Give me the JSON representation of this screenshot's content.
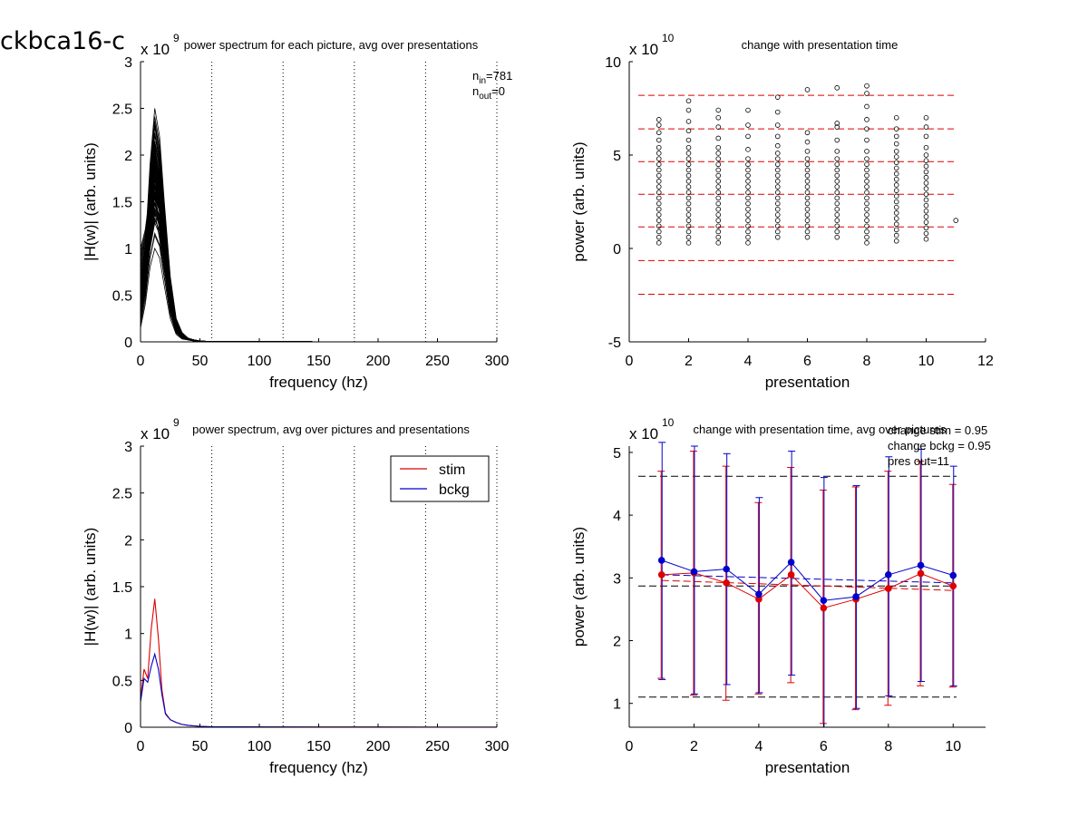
{
  "page_title": "ckbca16-c",
  "colors": {
    "stim": "#dd0000",
    "bckg": "#0000cc",
    "red_dashed": "#dd0000",
    "black_dashed": "#000000",
    "axis": "#000000"
  },
  "chart_data": [
    {
      "id": "p1",
      "type": "line",
      "title": "power spectrum for each picture, avg over presentations",
      "xlabel": "frequency (hz)",
      "ylabel": "|H(w)| (arb. units)",
      "exponent_label": "x 10",
      "exponent": "9",
      "xlim": [
        0,
        300
      ],
      "ylim": [
        0,
        3
      ],
      "xticks": [
        0,
        50,
        100,
        150,
        200,
        250,
        300
      ],
      "yticks": [
        0,
        0.5,
        1,
        1.5,
        2,
        2.5,
        3
      ],
      "ytick_labels": [
        "0",
        "0.5",
        "1",
        "1.5",
        "2",
        "2.5",
        "3"
      ],
      "vlines": [
        60,
        120,
        180,
        240,
        300
      ],
      "annotation": {
        "n_in": "781",
        "n_out": "0"
      },
      "freq": [
        0,
        4,
        8,
        12,
        16,
        20,
        25,
        30,
        35,
        40,
        45,
        50,
        55,
        60,
        70,
        80,
        90,
        100,
        150,
        200,
        250,
        300
      ],
      "series": [
        {
          "values": [
            0.2,
            0.55,
            1.0,
            1.3,
            1.2,
            0.8,
            0.35,
            0.12,
            0.05,
            0.02,
            0.01,
            0.01,
            0.005,
            0.004,
            0.003,
            0.003,
            0.002,
            0.002,
            0.001,
            0.001,
            0.001,
            0.001
          ]
        },
        {
          "values": [
            0.3,
            0.7,
            1.4,
            1.8,
            1.6,
            1.1,
            0.5,
            0.18,
            0.07,
            0.03,
            0.02,
            0.01,
            0.005,
            0.004,
            0.003,
            0.003,
            0.002,
            0.002,
            0.001,
            0.001,
            0.001,
            0.001
          ]
        },
        {
          "values": [
            0.5,
            1.0,
            1.9,
            2.5,
            2.2,
            1.5,
            0.7,
            0.25,
            0.1,
            0.04,
            0.02,
            0.01,
            0.006,
            0.005,
            0.004,
            0.003,
            0.002,
            0.002,
            0.001,
            0.001,
            0.001,
            0.001
          ]
        },
        {
          "values": [
            0.7,
            0.95,
            1.3,
            1.4,
            1.1,
            0.7,
            0.3,
            0.1,
            0.04,
            0.02,
            0.01,
            0.01,
            0.005,
            0.004,
            0.003,
            0.003,
            0.002,
            0.002,
            0.001,
            0.001,
            0.001,
            0.001
          ]
        },
        {
          "values": [
            1.0,
            1.2,
            1.6,
            2.1,
            1.9,
            1.3,
            0.6,
            0.2,
            0.08,
            0.03,
            0.02,
            0.01,
            0.005,
            0.004,
            0.003,
            0.003,
            0.002,
            0.002,
            0.001,
            0.001,
            0.001,
            0.001
          ]
        },
        {
          "values": [
            0.15,
            0.4,
            0.8,
            1.0,
            0.9,
            0.6,
            0.25,
            0.08,
            0.03,
            0.02,
            0.01,
            0.005,
            0.004,
            0.003,
            0.003,
            0.002,
            0.002,
            0.002,
            0.001,
            0.001,
            0.001,
            0.001
          ]
        },
        {
          "values": [
            0.4,
            0.85,
            1.7,
            2.3,
            2.0,
            1.35,
            0.62,
            0.22,
            0.09,
            0.04,
            0.02,
            0.01,
            0.005,
            0.004,
            0.003,
            0.003,
            0.002,
            0.002,
            0.001,
            0.001,
            0.001,
            0.001
          ]
        },
        {
          "values": [
            0.6,
            0.9,
            1.2,
            1.6,
            1.45,
            0.95,
            0.42,
            0.15,
            0.06,
            0.03,
            0.02,
            0.01,
            0.005,
            0.004,
            0.003,
            0.003,
            0.002,
            0.002,
            0.001,
            0.001,
            0.001,
            0.001
          ]
        },
        {
          "values": [
            0.25,
            0.6,
            1.2,
            1.55,
            1.4,
            0.9,
            0.4,
            0.14,
            0.05,
            0.02,
            0.01,
            0.01,
            0.005,
            0.004,
            0.003,
            0.003,
            0.002,
            0.002,
            0.001,
            0.001,
            0.001,
            0.001
          ]
        },
        {
          "values": [
            0.35,
            0.75,
            1.5,
            2.0,
            1.75,
            1.2,
            0.55,
            0.19,
            0.08,
            0.03,
            0.02,
            0.01,
            0.005,
            0.004,
            0.003,
            0.003,
            0.002,
            0.002,
            0.001,
            0.001,
            0.001,
            0.001
          ]
        }
      ]
    },
    {
      "id": "p2",
      "type": "scatter",
      "title": "change with presentation time",
      "xlabel": "presentation",
      "ylabel": "power (arb. units)",
      "exponent_label": "x 10",
      "exponent": "10",
      "xlim": [
        0,
        12
      ],
      "ylim": [
        -5,
        10
      ],
      "xticks": [
        0,
        2,
        4,
        6,
        8,
        10,
        12
      ],
      "yticks": [
        -5,
        0,
        5,
        10
      ],
      "hlines": [
        8.2,
        6.4,
        4.65,
        2.9,
        1.15,
        -0.65,
        -2.45
      ],
      "points": [
        {
          "x": 1,
          "values": [
            0.3,
            0.6,
            0.9,
            1.2,
            1.5,
            1.8,
            2.1,
            2.4,
            2.7,
            3.0,
            3.3,
            3.6,
            3.9,
            4.2,
            4.5,
            4.8,
            5.1,
            5.4,
            5.8,
            6.2,
            6.6,
            6.9
          ]
        },
        {
          "x": 2,
          "values": [
            0.3,
            0.6,
            0.9,
            1.2,
            1.5,
            1.8,
            2.1,
            2.4,
            2.7,
            3.0,
            3.3,
            3.6,
            3.9,
            4.2,
            4.5,
            4.8,
            5.1,
            5.4,
            5.8,
            6.3,
            6.8,
            7.4,
            7.9
          ]
        },
        {
          "x": 3,
          "values": [
            0.3,
            0.6,
            0.9,
            1.2,
            1.5,
            1.8,
            2.1,
            2.4,
            2.7,
            3.0,
            3.3,
            3.6,
            3.9,
            4.2,
            4.5,
            4.8,
            5.1,
            5.4,
            5.9,
            6.5,
            7.0,
            7.4
          ]
        },
        {
          "x": 4,
          "values": [
            0.3,
            0.6,
            0.9,
            1.2,
            1.5,
            1.8,
            2.1,
            2.4,
            2.7,
            3.0,
            3.3,
            3.6,
            3.9,
            4.2,
            4.5,
            4.8,
            5.3,
            6.0,
            6.6,
            7.4
          ]
        },
        {
          "x": 5,
          "values": [
            0.6,
            0.9,
            1.2,
            1.5,
            1.8,
            2.1,
            2.4,
            2.7,
            3.0,
            3.3,
            3.6,
            3.9,
            4.2,
            4.5,
            4.8,
            5.1,
            5.5,
            6.0,
            6.6,
            7.3,
            8.1
          ]
        },
        {
          "x": 6,
          "values": [
            0.6,
            0.9,
            1.2,
            1.5,
            1.8,
            2.1,
            2.4,
            2.7,
            3.0,
            3.3,
            3.6,
            3.9,
            4.2,
            4.5,
            4.8,
            5.2,
            5.7,
            6.2,
            8.5
          ]
        },
        {
          "x": 7,
          "values": [
            0.6,
            0.9,
            1.2,
            1.5,
            1.8,
            2.1,
            2.4,
            2.7,
            3.0,
            3.3,
            3.6,
            3.9,
            4.2,
            4.5,
            4.8,
            5.2,
            5.8,
            6.5,
            6.7,
            8.6
          ]
        },
        {
          "x": 8,
          "values": [
            0.3,
            0.6,
            0.9,
            1.2,
            1.5,
            1.8,
            2.1,
            2.4,
            2.7,
            3.0,
            3.3,
            3.6,
            3.9,
            4.2,
            4.5,
            4.8,
            5.2,
            5.8,
            6.4,
            6.9,
            7.6,
            8.3,
            8.7
          ]
        },
        {
          "x": 9,
          "values": [
            0.4,
            0.7,
            1.0,
            1.3,
            1.6,
            1.9,
            2.2,
            2.5,
            2.8,
            3.1,
            3.4,
            3.7,
            4.0,
            4.3,
            4.6,
            4.9,
            5.2,
            5.6,
            6.0,
            6.4,
            7.0
          ]
        },
        {
          "x": 10,
          "values": [
            0.5,
            0.8,
            1.1,
            1.4,
            1.7,
            2.0,
            2.3,
            2.6,
            2.9,
            3.2,
            3.5,
            3.8,
            4.1,
            4.4,
            4.7,
            5.0,
            5.4,
            6.0,
            6.5,
            7.0
          ]
        },
        {
          "x": 11,
          "values": [
            1.5
          ]
        }
      ]
    },
    {
      "id": "p3",
      "type": "line",
      "title": "power spectrum, avg over pictures and presentations",
      "xlabel": "frequency (hz)",
      "ylabel": "|H(w)| (arb. units)",
      "exponent_label": "x 10",
      "exponent": "9",
      "xlim": [
        0,
        300
      ],
      "ylim": [
        0,
        3
      ],
      "xticks": [
        0,
        50,
        100,
        150,
        200,
        250,
        300
      ],
      "yticks": [
        0,
        0.5,
        1,
        1.5,
        2,
        2.5,
        3
      ],
      "ytick_labels": [
        "0",
        "0.5",
        "1",
        "1.5",
        "2",
        "2.5",
        "3"
      ],
      "vlines": [
        60,
        120,
        180,
        240,
        300
      ],
      "legend_position": "top-right",
      "x": [
        0,
        3,
        6,
        9,
        12,
        15,
        18,
        21,
        25,
        30,
        35,
        40,
        45,
        50,
        60,
        100,
        150,
        200,
        250,
        300
      ],
      "series": [
        {
          "name": "stim",
          "color": "#dd0000",
          "values": [
            0.3,
            0.62,
            0.52,
            1.05,
            1.37,
            0.95,
            0.4,
            0.15,
            0.08,
            0.05,
            0.03,
            0.02,
            0.015,
            0.01,
            0.005,
            0.003,
            0.002,
            0.002,
            0.001,
            0.001
          ]
        },
        {
          "name": "bckg",
          "color": "#0000cc",
          "values": [
            0.27,
            0.52,
            0.48,
            0.65,
            0.78,
            0.62,
            0.35,
            0.14,
            0.08,
            0.05,
            0.03,
            0.02,
            0.015,
            0.01,
            0.005,
            0.003,
            0.002,
            0.002,
            0.001,
            0.001
          ]
        }
      ]
    },
    {
      "id": "p4",
      "type": "line",
      "title": "change with presentation time, avg over pictures",
      "xlabel": "presentation",
      "ylabel": "power (arb. units)",
      "exponent_label": "x 10",
      "exponent": "10",
      "xlim": [
        0,
        11
      ],
      "ylim": [
        0.62,
        5.1
      ],
      "xticks": [
        0,
        2,
        4,
        6,
        8,
        10
      ],
      "yticks": [
        1,
        2,
        3,
        4,
        5
      ],
      "annotations": [
        "change stim = 0.95",
        "change bckg = 0.95",
        "pres out=11"
      ],
      "hlines": [
        4.62,
        2.87,
        1.1
      ],
      "x": [
        1,
        2,
        3,
        4,
        5,
        6,
        7,
        8,
        9,
        10
      ],
      "series": [
        {
          "name": "stim",
          "color": "#dd0000",
          "values": [
            3.05,
            3.08,
            2.92,
            2.66,
            3.05,
            2.52,
            2.66,
            2.83,
            3.07,
            2.87
          ],
          "err_low": [
            1.4,
            1.13,
            1.05,
            1.15,
            1.33,
            0.68,
            0.9,
            0.97,
            1.28,
            1.26
          ],
          "err_high": [
            4.7,
            5.02,
            4.78,
            4.2,
            4.76,
            4.4,
            4.45,
            4.7,
            4.86,
            4.49
          ],
          "trend": [
            2.96,
            2.8
          ]
        },
        {
          "name": "bckg",
          "color": "#0000cc",
          "values": [
            3.28,
            3.1,
            3.14,
            2.74,
            3.25,
            2.64,
            2.7,
            3.05,
            3.2,
            3.04
          ],
          "err_low": [
            1.38,
            1.15,
            1.3,
            1.17,
            1.45,
            0.62,
            0.92,
            1.12,
            1.35,
            1.28
          ],
          "err_high": [
            5.16,
            5.1,
            4.98,
            4.28,
            5.02,
            4.6,
            4.47,
            4.93,
            5.05,
            4.78
          ],
          "trend": [
            3.05,
            2.92
          ]
        }
      ]
    }
  ]
}
